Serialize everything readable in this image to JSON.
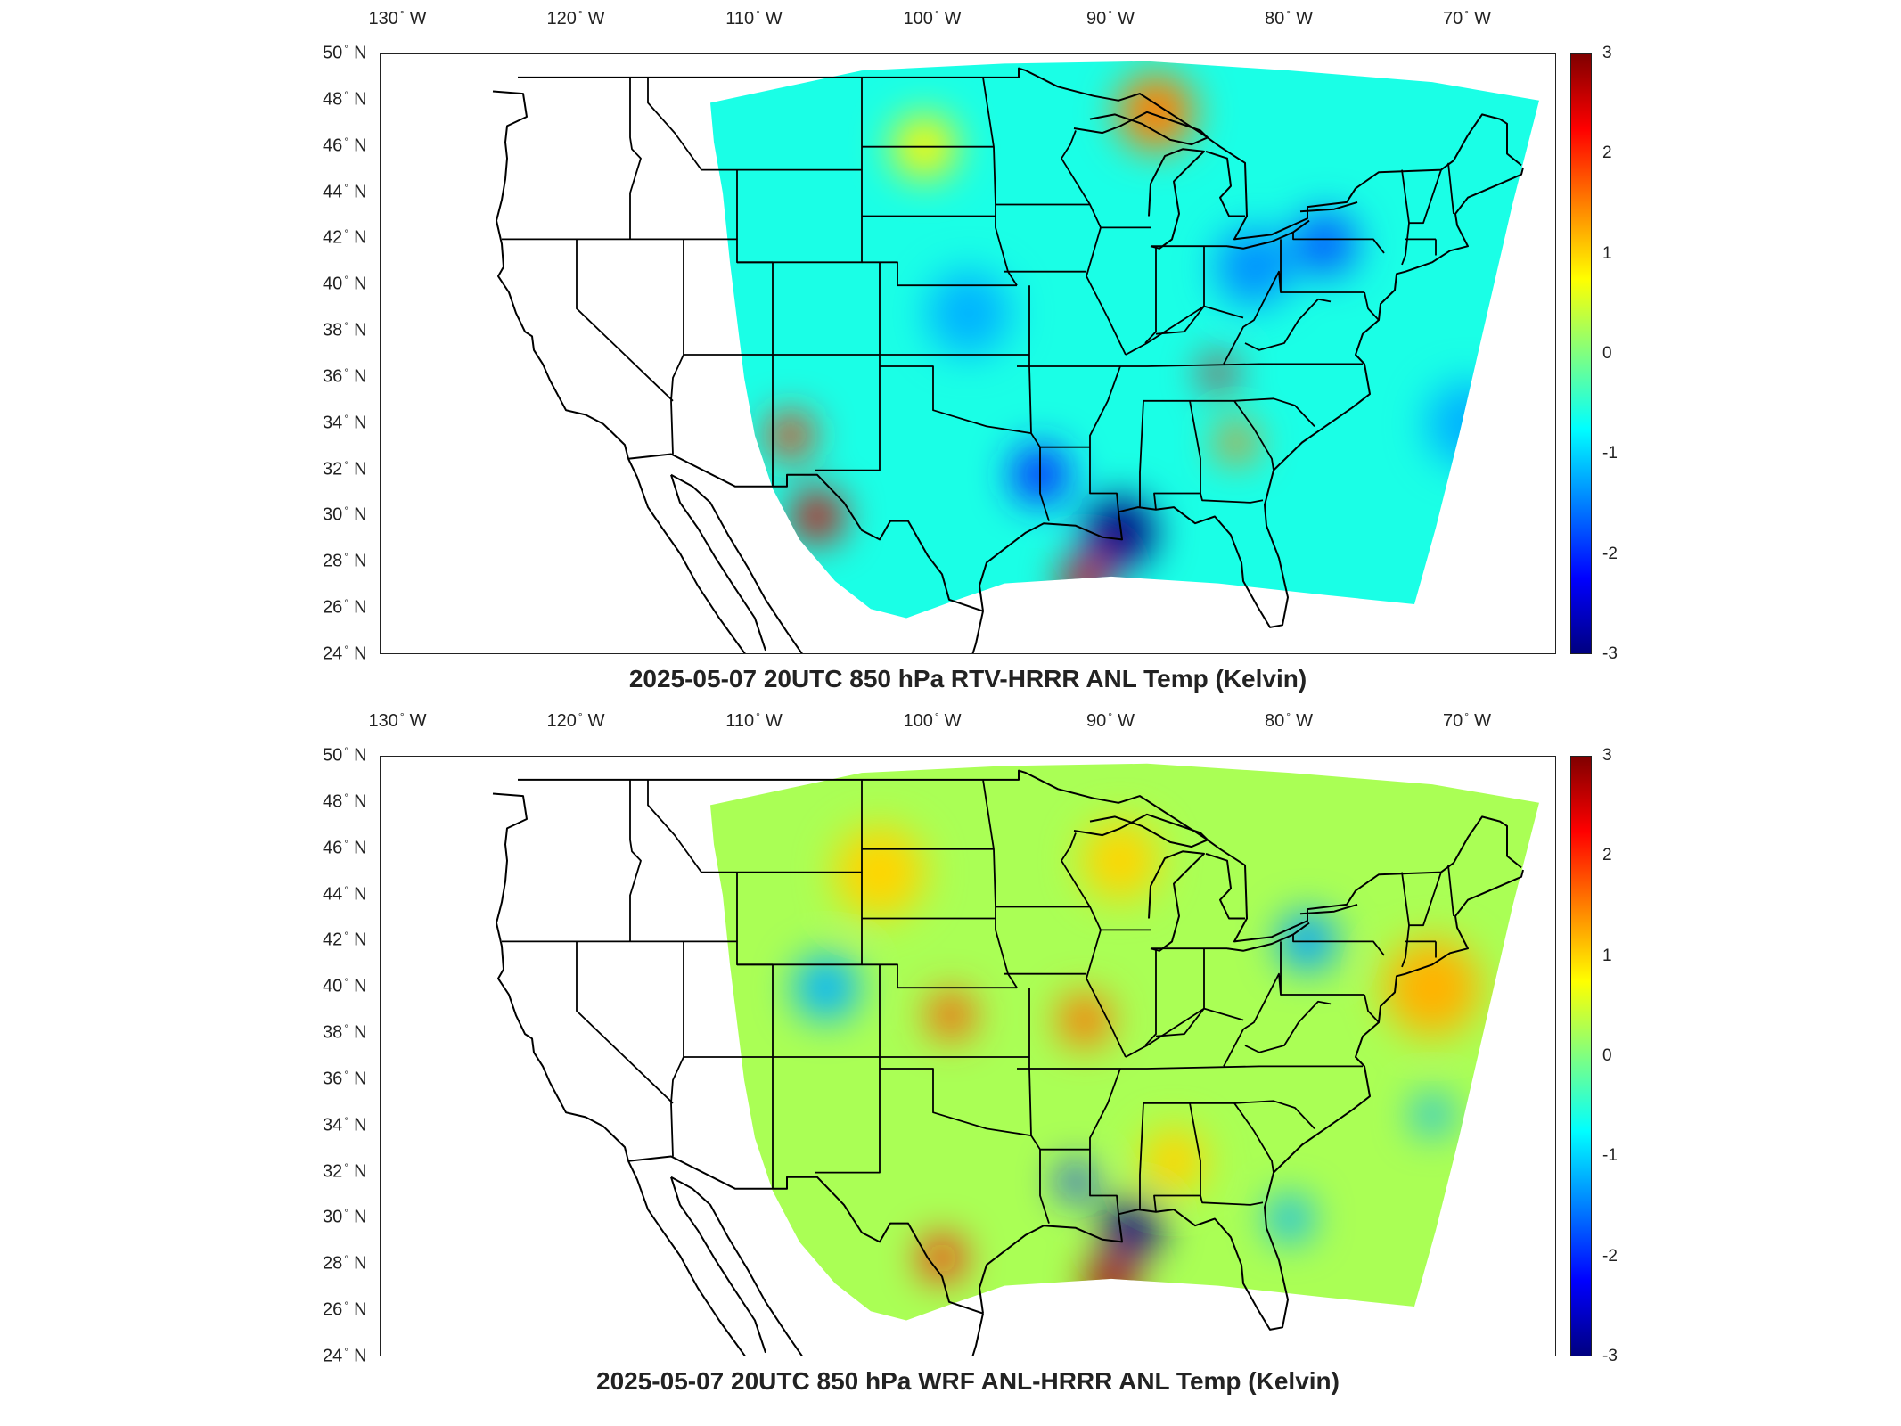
{
  "panels": [
    {
      "title": "2025-05-07 20UTC 850 hPa RTV-HRRR ANL Temp (Kelvin)",
      "anomalies": [
        {
          "lon": -89.5,
          "lat": 29.3,
          "value": -3,
          "spread": 2.2
        },
        {
          "lon": -94.0,
          "lat": 31.8,
          "value": -2,
          "spread": 1.8
        },
        {
          "lon": -87.5,
          "lat": 47.5,
          "value": 1.5,
          "spread": 2.4
        },
        {
          "lon": -84.0,
          "lat": 36.2,
          "value": 2.5,
          "spread": 1.0
        },
        {
          "lon": -83.0,
          "lat": 33.2,
          "value": 1.5,
          "spread": 1.2
        },
        {
          "lon": -91.5,
          "lat": 27.2,
          "value": 2.5,
          "spread": 1.5
        },
        {
          "lon": -106.5,
          "lat": 30.0,
          "value": 2.5,
          "spread": 1.6
        },
        {
          "lon": -108.0,
          "lat": 33.5,
          "value": 2.0,
          "spread": 1.4
        },
        {
          "lon": -78.0,
          "lat": 41.8,
          "value": -1.7,
          "spread": 2.0
        },
        {
          "lon": -82.0,
          "lat": 40.8,
          "value": -1.4,
          "spread": 2.4
        },
        {
          "lon": -98.0,
          "lat": 38.8,
          "value": -1.2,
          "spread": 2.6
        },
        {
          "lon": -70.0,
          "lat": 34.0,
          "value": -1.2,
          "spread": 2.6
        },
        {
          "lon": -100.5,
          "lat": 46.0,
          "value": 0.8,
          "spread": 2.0
        }
      ]
    },
    {
      "title": "2025-05-07 20UTC 850 hPa WRF ANL-HRRR ANL Temp (Kelvin)",
      "anomalies": [
        {
          "lon": -88.8,
          "lat": 29.6,
          "value": -3,
          "spread": 1.8
        },
        {
          "lon": -92.0,
          "lat": 31.6,
          "value": -2,
          "spread": 1.1
        },
        {
          "lon": -90.0,
          "lat": 27.3,
          "value": 2.8,
          "spread": 1.6
        },
        {
          "lon": -99.5,
          "lat": 28.3,
          "value": 2.2,
          "spread": 1.3
        },
        {
          "lon": -99.0,
          "lat": 38.8,
          "value": 1.8,
          "spread": 1.4
        },
        {
          "lon": -91.5,
          "lat": 38.6,
          "value": 1.6,
          "spread": 1.6
        },
        {
          "lon": -103.0,
          "lat": 45.0,
          "value": 1.0,
          "spread": 2.8
        },
        {
          "lon": -89.5,
          "lat": 45.5,
          "value": 1.0,
          "spread": 2.4
        },
        {
          "lon": -72.0,
          "lat": 40.0,
          "value": 1.2,
          "spread": 3.0
        },
        {
          "lon": -86.5,
          "lat": 32.5,
          "value": 1.0,
          "spread": 2.0
        },
        {
          "lon": -106.0,
          "lat": 40.0,
          "value": -1.2,
          "spread": 2.0
        },
        {
          "lon": -79.0,
          "lat": 42.0,
          "value": -1.3,
          "spread": 1.8
        },
        {
          "lon": -72.0,
          "lat": 34.5,
          "value": -1.2,
          "spread": 1.2
        },
        {
          "lon": -80.0,
          "lat": 30.0,
          "value": -1.2,
          "spread": 1.4
        }
      ]
    }
  ],
  "lon_ticks": [
    "130",
    "120",
    "110",
    "100",
    "90",
    "80",
    "70"
  ],
  "lon_values": [
    -130,
    -120,
    -110,
    -100,
    -90,
    -80,
    -70
  ],
  "lon_hemisphere": "W",
  "lat_ticks": [
    "50",
    "48",
    "46",
    "44",
    "42",
    "40",
    "38",
    "36",
    "34",
    "32",
    "30",
    "28",
    "26",
    "24"
  ],
  "lat_values": [
    50,
    48,
    46,
    44,
    42,
    40,
    38,
    36,
    34,
    32,
    30,
    28,
    26,
    24
  ],
  "lat_hemisphere": "N",
  "degree_symbol": "°",
  "colorbar": {
    "ticks": [
      "3",
      "2",
      "1",
      "0",
      "-1",
      "-2",
      "-3"
    ],
    "values": [
      3,
      2,
      1,
      0,
      -1,
      -2,
      -3
    ],
    "range": [
      -3,
      3
    ],
    "colormap": "jet"
  },
  "map_extent": {
    "lon": [
      -131,
      -65
    ],
    "lat": [
      24,
      50
    ]
  }
}
